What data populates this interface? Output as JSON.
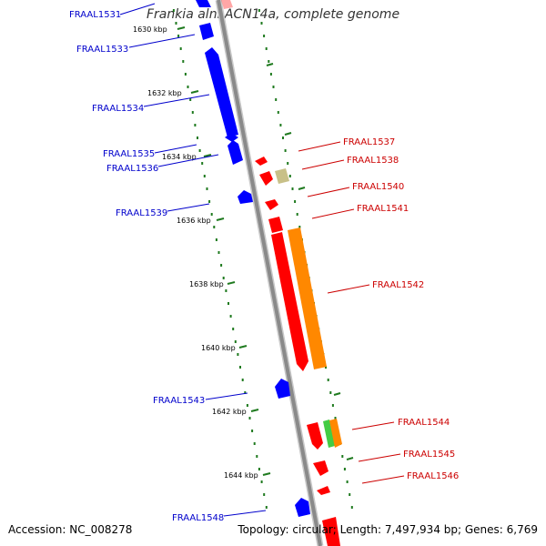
{
  "header": {
    "title": "Frankia alni ACN14a, complete genome"
  },
  "footer": {
    "accession": "Accession: NC_008278",
    "summary": "Topology: circular; Length: 7,497,934 bp; Genes: 6,769"
  },
  "colors": {
    "backbone": "#8a8a8a",
    "tick": "#1f7a1f",
    "reverse_label": "#0000cc",
    "forward_label": "#cc0000",
    "gene_blue": "#0000ff",
    "gene_red": "#ff0000",
    "gene_orange": "#ff8800",
    "gene_olive": "#c8c088",
    "gene_green": "#44cc44"
  },
  "kbp_markers": [
    "1630 kbp",
    "1632 kbp",
    "1634 kbp",
    "1636 kbp",
    "1638 kbp",
    "1640 kbp",
    "1642 kbp",
    "1644 kbp"
  ],
  "reverse_genes": [
    {
      "label": "FRAAL1531",
      "color": "gene_blue"
    },
    {
      "label": "FRAAL1533",
      "color": "gene_blue"
    },
    {
      "label": "FRAAL1534",
      "color": "gene_blue"
    },
    {
      "label": "FRAAL1535",
      "color": "gene_blue"
    },
    {
      "label": "FRAAL1536",
      "color": "gene_blue"
    },
    {
      "label": "FRAAL1539",
      "color": "gene_blue"
    },
    {
      "label": "FRAAL1543",
      "color": "gene_blue"
    },
    {
      "label": "FRAAL1548",
      "color": "gene_blue"
    }
  ],
  "forward_genes": [
    {
      "label": "FRAAL1537",
      "color": "gene_red"
    },
    {
      "label": "FRAAL1538",
      "color": "gene_olive"
    },
    {
      "label": "FRAAL1540",
      "color": "gene_red"
    },
    {
      "label": "FRAAL1541",
      "color": "gene_red"
    },
    {
      "label": "FRAAL1542",
      "color": "gene_orange"
    },
    {
      "label": "FRAAL1544",
      "color": "gene_green"
    },
    {
      "label": "FRAAL1545",
      "color": "gene_red"
    },
    {
      "label": "FRAAL1546",
      "color": "gene_red"
    }
  ]
}
